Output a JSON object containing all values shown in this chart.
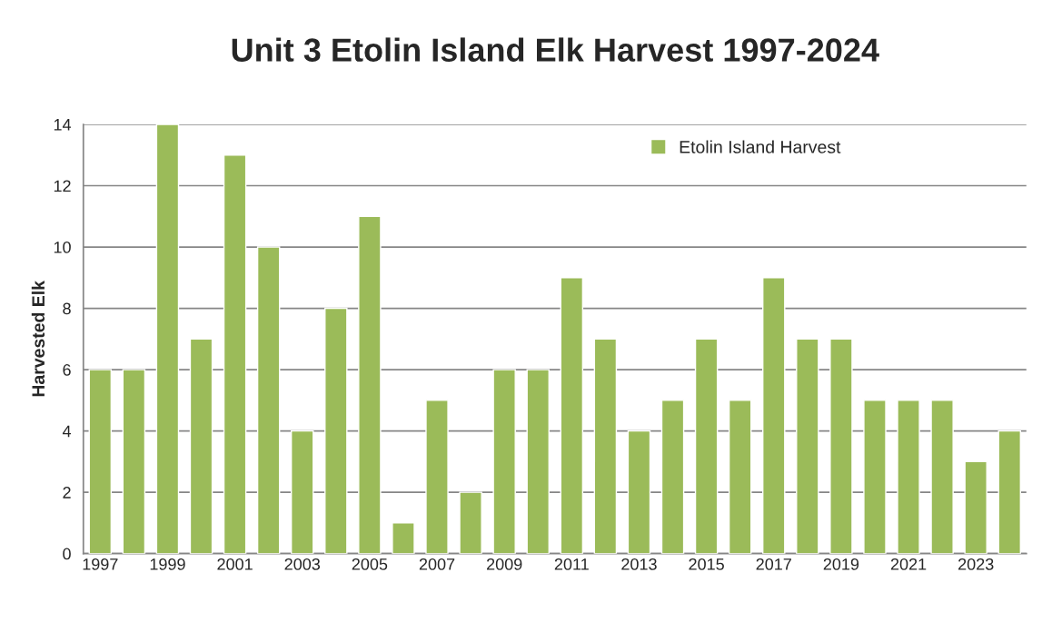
{
  "chart_data": {
    "type": "bar",
    "title": "Unit 3 Etolin Island Elk Harvest 1997-2024",
    "ylabel": "Harvested Elk",
    "categories": [
      "1997",
      null,
      "1999",
      null,
      "2001",
      null,
      "2003",
      null,
      "2005",
      null,
      "2007",
      null,
      "2009",
      null,
      "2011",
      null,
      "2013",
      null,
      "2015",
      null,
      "2017",
      null,
      "2019",
      null,
      "2021",
      null,
      "2023",
      null
    ],
    "series": [
      {
        "name": "Etolin Island Harvest",
        "color": "#9bbb59",
        "values": [
          6,
          6,
          14,
          7,
          13,
          10,
          4,
          8,
          11,
          1,
          5,
          2,
          6,
          6,
          9,
          7,
          4,
          5,
          7,
          5,
          9,
          7,
          7,
          5,
          5,
          5,
          3,
          4
        ]
      }
    ],
    "ylim": [
      0,
      14
    ],
    "yticks": [
      0,
      2,
      4,
      6,
      8,
      10,
      12,
      14
    ],
    "grid": "y",
    "legend": "top right"
  }
}
